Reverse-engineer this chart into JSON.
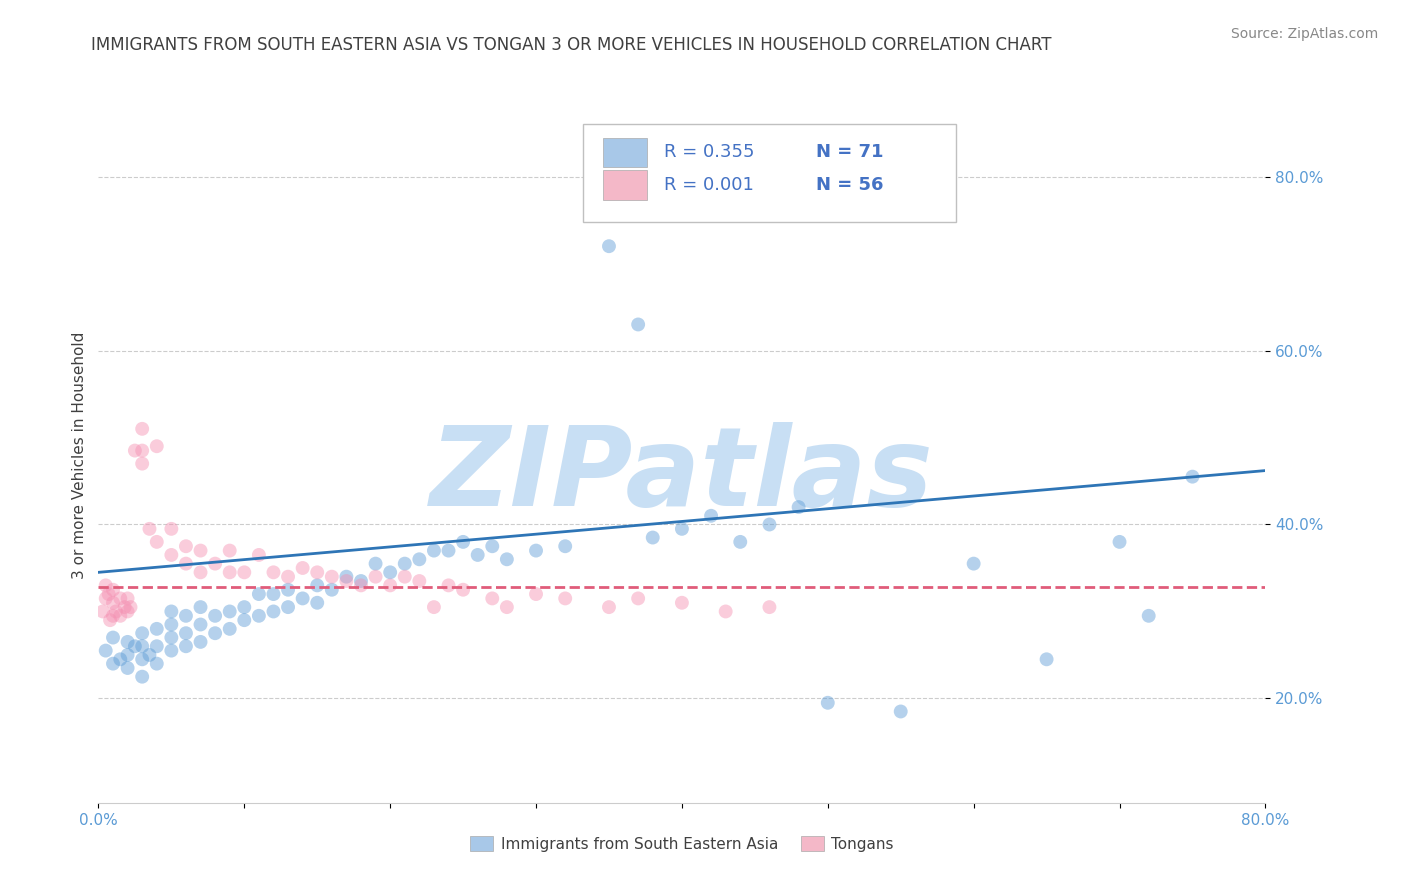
{
  "title": "IMMIGRANTS FROM SOUTH EASTERN ASIA VS TONGAN 3 OR MORE VEHICLES IN HOUSEHOLD CORRELATION CHART",
  "source_text": "Source: ZipAtlas.com",
  "ylabel": "3 or more Vehicles in Household",
  "xlim": [
    0.0,
    0.8
  ],
  "ylim": [
    0.08,
    0.88
  ],
  "xticks": [
    0.0,
    0.1,
    0.2,
    0.3,
    0.4,
    0.5,
    0.6,
    0.7,
    0.8
  ],
  "xticklabels": [
    "0.0%",
    "",
    "",
    "",
    "",
    "",
    "",
    "",
    "80.0%"
  ],
  "ytick_positions": [
    0.2,
    0.4,
    0.6,
    0.8
  ],
  "ytick_labels": [
    "20.0%",
    "40.0%",
    "60.0%",
    "80.0%"
  ],
  "legend_r1": "R = 0.355",
  "legend_n1": "N = 71",
  "legend_r2": "R = 0.001",
  "legend_n2": "N = 56",
  "legend_color1": "#a8c8e8",
  "legend_color2": "#f4b8c8",
  "blue_series_color": "#5b9bd5",
  "pink_series_color": "#f48fb1",
  "blue_trend_color": "#2e75b6",
  "pink_trend_color": "#e05c7a",
  "legend_text_color": "#4472c4",
  "watermark_text": "ZIPatlas",
  "watermark_color": "#c8dff4",
  "background_color": "#ffffff",
  "title_color": "#404040",
  "blue_scatter_x": [
    0.005,
    0.01,
    0.01,
    0.015,
    0.02,
    0.02,
    0.02,
    0.025,
    0.03,
    0.03,
    0.03,
    0.03,
    0.035,
    0.04,
    0.04,
    0.04,
    0.05,
    0.05,
    0.05,
    0.05,
    0.06,
    0.06,
    0.06,
    0.07,
    0.07,
    0.07,
    0.08,
    0.08,
    0.09,
    0.09,
    0.1,
    0.1,
    0.11,
    0.11,
    0.12,
    0.12,
    0.13,
    0.13,
    0.14,
    0.15,
    0.15,
    0.16,
    0.17,
    0.18,
    0.19,
    0.2,
    0.21,
    0.22,
    0.23,
    0.24,
    0.25,
    0.26,
    0.27,
    0.28,
    0.3,
    0.32,
    0.35,
    0.37,
    0.38,
    0.4,
    0.42,
    0.44,
    0.46,
    0.48,
    0.5,
    0.55,
    0.6,
    0.65,
    0.7,
    0.72,
    0.75
  ],
  "blue_scatter_y": [
    0.255,
    0.24,
    0.27,
    0.245,
    0.235,
    0.25,
    0.265,
    0.26,
    0.225,
    0.245,
    0.26,
    0.275,
    0.25,
    0.24,
    0.26,
    0.28,
    0.255,
    0.27,
    0.285,
    0.3,
    0.26,
    0.275,
    0.295,
    0.265,
    0.285,
    0.305,
    0.275,
    0.295,
    0.28,
    0.3,
    0.29,
    0.305,
    0.295,
    0.32,
    0.3,
    0.32,
    0.305,
    0.325,
    0.315,
    0.31,
    0.33,
    0.325,
    0.34,
    0.335,
    0.355,
    0.345,
    0.355,
    0.36,
    0.37,
    0.37,
    0.38,
    0.365,
    0.375,
    0.36,
    0.37,
    0.375,
    0.72,
    0.63,
    0.385,
    0.395,
    0.41,
    0.38,
    0.4,
    0.42,
    0.195,
    0.185,
    0.355,
    0.245,
    0.38,
    0.295,
    0.455
  ],
  "pink_scatter_x": [
    0.003,
    0.005,
    0.005,
    0.007,
    0.008,
    0.01,
    0.01,
    0.01,
    0.012,
    0.015,
    0.015,
    0.018,
    0.02,
    0.02,
    0.022,
    0.025,
    0.03,
    0.03,
    0.03,
    0.035,
    0.04,
    0.04,
    0.05,
    0.05,
    0.06,
    0.06,
    0.07,
    0.07,
    0.08,
    0.09,
    0.09,
    0.1,
    0.11,
    0.12,
    0.13,
    0.14,
    0.15,
    0.16,
    0.17,
    0.18,
    0.19,
    0.2,
    0.21,
    0.22,
    0.23,
    0.24,
    0.25,
    0.27,
    0.28,
    0.3,
    0.32,
    0.35,
    0.37,
    0.4,
    0.43,
    0.46
  ],
  "pink_scatter_y": [
    0.3,
    0.315,
    0.33,
    0.32,
    0.29,
    0.295,
    0.31,
    0.325,
    0.3,
    0.295,
    0.315,
    0.305,
    0.3,
    0.315,
    0.305,
    0.485,
    0.47,
    0.485,
    0.51,
    0.395,
    0.38,
    0.49,
    0.365,
    0.395,
    0.355,
    0.375,
    0.37,
    0.345,
    0.355,
    0.345,
    0.37,
    0.345,
    0.365,
    0.345,
    0.34,
    0.35,
    0.345,
    0.34,
    0.335,
    0.33,
    0.34,
    0.33,
    0.34,
    0.335,
    0.305,
    0.33,
    0.325,
    0.315,
    0.305,
    0.32,
    0.315,
    0.305,
    0.315,
    0.31,
    0.3,
    0.305
  ],
  "blue_trend_x": [
    0.0,
    0.8
  ],
  "blue_trend_y": [
    0.345,
    0.462
  ],
  "pink_trend_x": [
    0.0,
    0.8
  ],
  "pink_trend_y": [
    0.328,
    0.328
  ],
  "grid_color": "#cccccc",
  "title_fontsize": 12,
  "axis_label_fontsize": 11,
  "tick_fontsize": 11,
  "marker_size": 100,
  "marker_alpha": 0.45
}
